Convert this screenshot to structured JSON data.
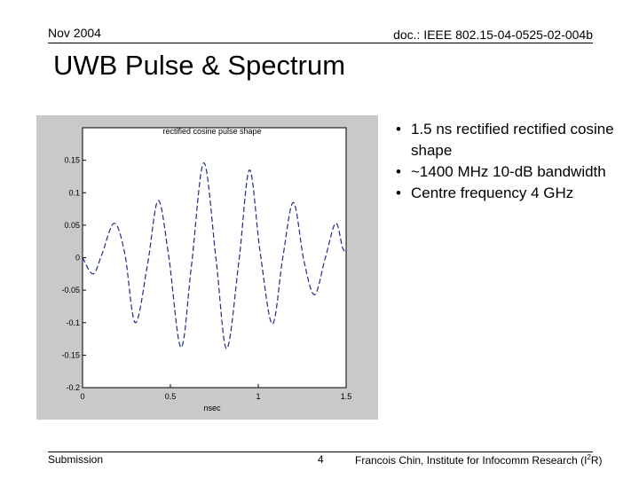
{
  "header": {
    "date": "Nov 2004",
    "doc_id": "doc.: IEEE 802.15-04-0525-02-004b"
  },
  "slide": {
    "title": "UWB Pulse & Spectrum",
    "bullets": [
      "1.5 ns rectified rectified cosine shape",
      "~1400 MHz 10-dB bandwidth",
      "Centre frequency 4 GHz"
    ]
  },
  "footer": {
    "left": "Submission",
    "page": "4",
    "author_prefix": "Francois Chin, Institute for Infocomm Research (I",
    "author_sup": "2",
    "author_suffix": "R)"
  },
  "chart_data": {
    "type": "line",
    "title": "rectified cosine pulse shape",
    "xlabel": "nsec",
    "ylabel": "",
    "xlim": [
      0,
      1.5
    ],
    "ylim": [
      -0.2,
      0.2
    ],
    "x_ticks": [
      "0",
      "0.5",
      "1",
      "1.5"
    ],
    "y_ticks": [
      "0.15",
      "0.1",
      "0.05",
      "0",
      "-0.05",
      "-0.1",
      "-0.15",
      "-0.2"
    ],
    "series": [
      {
        "line_style": "dashed",
        "color": "#1f2a8c",
        "x": [
          0,
          0.06,
          0.11,
          0.18,
          0.24,
          0.3,
          0.37,
          0.43,
          0.49,
          0.56,
          0.62,
          0.69,
          0.76,
          0.82,
          0.89,
          0.95,
          1.01,
          1.08,
          1.14,
          1.2,
          1.26,
          1.32,
          1.38,
          1.44,
          1.48,
          1.5
        ],
        "y": [
          0.0,
          -0.025,
          0.005,
          0.053,
          0.007,
          -0.1,
          -0.01,
          0.088,
          0.003,
          -0.138,
          -0.012,
          0.146,
          -0.003,
          -0.14,
          -0.005,
          0.135,
          0.01,
          -0.102,
          0.001,
          0.085,
          -0.005,
          -0.057,
          -0.002,
          0.053,
          0.015,
          0.01
        ]
      }
    ]
  }
}
